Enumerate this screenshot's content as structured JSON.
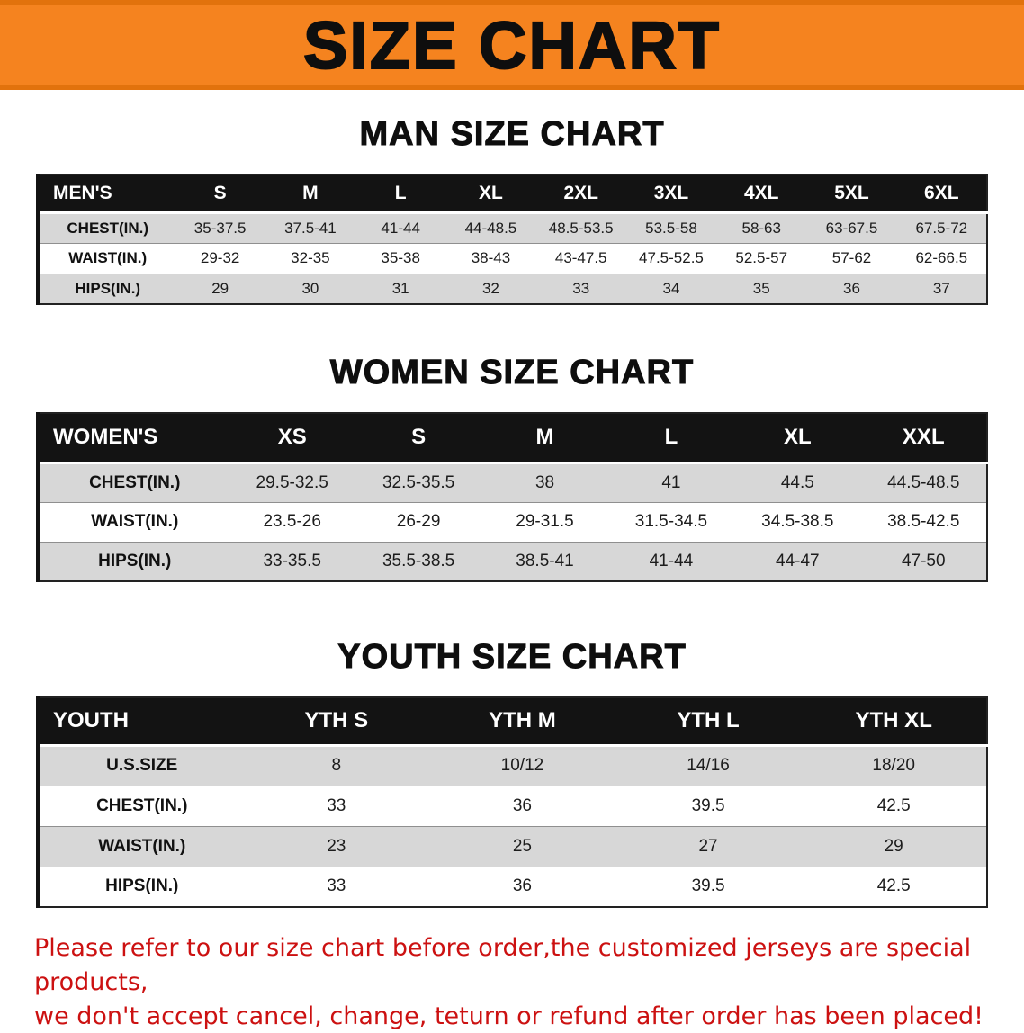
{
  "banner": {
    "title": "SIZE CHART"
  },
  "sections": [
    {
      "id": "men",
      "heading": "MAN SIZE CHART",
      "table": {
        "header": [
          "MEN'S",
          "S",
          "M",
          "L",
          "XL",
          "2XL",
          "3XL",
          "4XL",
          "5XL",
          "6XL"
        ],
        "rows": [
          [
            "CHEST(IN.)",
            "35-37.5",
            "37.5-41",
            "41-44",
            "44-48.5",
            "48.5-53.5",
            "53.5-58",
            "58-63",
            "63-67.5",
            "67.5-72"
          ],
          [
            "WAIST(IN.)",
            "29-32",
            "32-35",
            "35-38",
            "38-43",
            "43-47.5",
            "47.5-52.5",
            "52.5-57",
            "57-62",
            "62-66.5"
          ],
          [
            "HIPS(IN.)",
            "29",
            "30",
            "31",
            "32",
            "33",
            "34",
            "35",
            "36",
            "37"
          ]
        ]
      }
    },
    {
      "id": "women",
      "heading": "WOMEN SIZE CHART",
      "table": {
        "header": [
          "WOMEN'S",
          "XS",
          "S",
          "M",
          "L",
          "XL",
          "XXL"
        ],
        "rows": [
          [
            "CHEST(IN.)",
            "29.5-32.5",
            "32.5-35.5",
            "38",
            "41",
            "44.5",
            "44.5-48.5"
          ],
          [
            "WAIST(IN.)",
            "23.5-26",
            "26-29",
            "29-31.5",
            "31.5-34.5",
            "34.5-38.5",
            "38.5-42.5"
          ],
          [
            "HIPS(IN.)",
            "33-35.5",
            "35.5-38.5",
            "38.5-41",
            "41-44",
            "44-47",
            "47-50"
          ]
        ]
      }
    },
    {
      "id": "youth",
      "heading": "YOUTH SIZE CHART",
      "table": {
        "header": [
          "YOUTH",
          "YTH S",
          "YTH M",
          "YTH L",
          "YTH XL"
        ],
        "rows": [
          [
            "U.S.SIZE",
            "8",
            "10/12",
            "14/16",
            "18/20"
          ],
          [
            "CHEST(IN.)",
            "33",
            "36",
            "39.5",
            "42.5"
          ],
          [
            "WAIST(IN.)",
            "23",
            "25",
            "27",
            "29"
          ],
          [
            "HIPS(IN.)",
            "33",
            "36",
            "39.5",
            "42.5"
          ]
        ]
      }
    }
  ],
  "disclaimer": {
    "line1": "Please refer to our size chart before order,the customized jerseys are special products,",
    "line2": "we don't accept cancel, change, teturn or refund after order has been placed!"
  },
  "colors": {
    "banner_bg": "#F5831F",
    "banner_edge": "#E2720C",
    "header_bg": "#131313",
    "row_alt_bg": "#D7D7D7",
    "disclaimer_red": "#CC1111"
  }
}
